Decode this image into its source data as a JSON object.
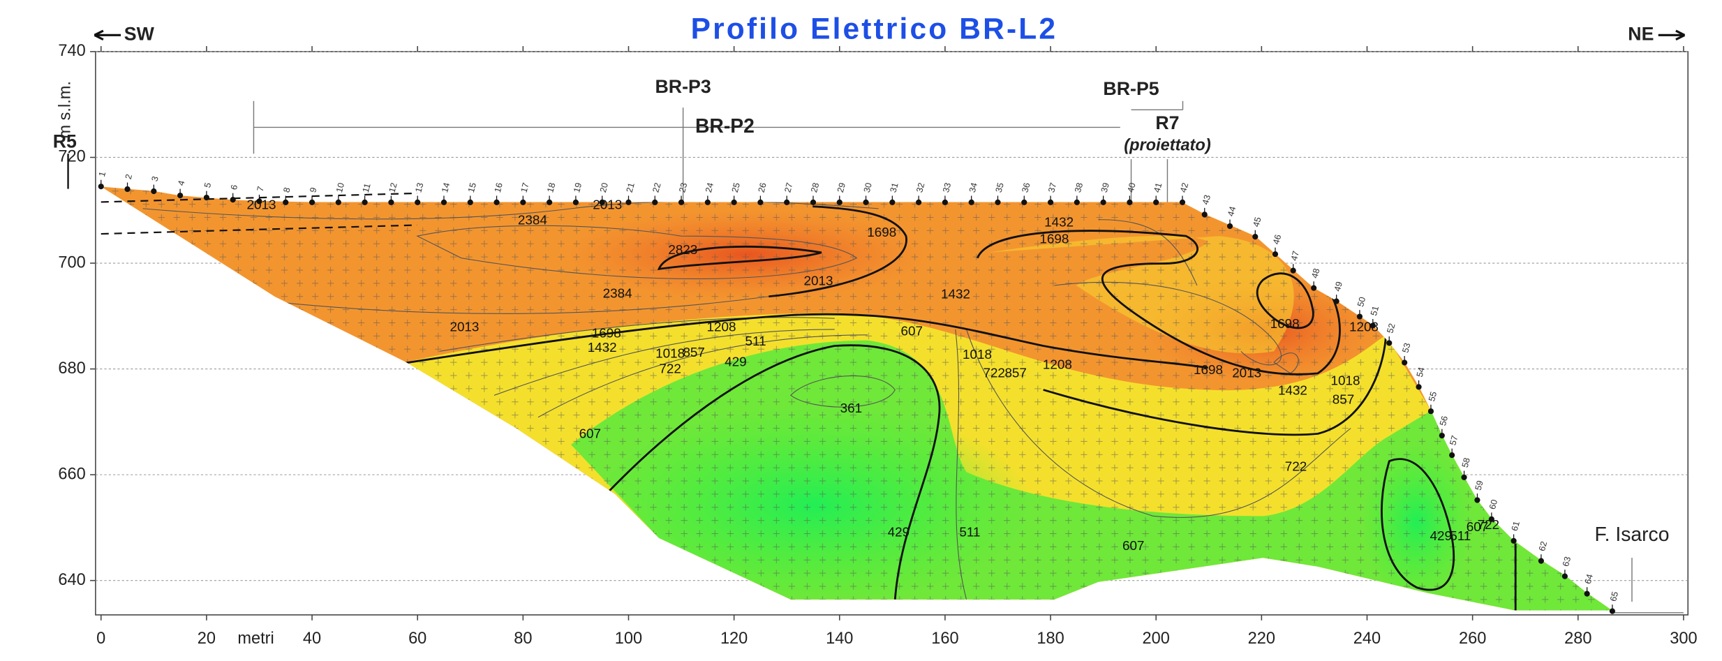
{
  "chart_data": {
    "type": "contour",
    "title": "Profilo Elettrico BR-L2",
    "left_label": "SW",
    "right_label": "NE",
    "y_label": "m s.l.m.",
    "x_label": "metri",
    "xlim": [
      0,
      300
    ],
    "ylim": [
      633.5,
      740
    ],
    "xticks": [
      0,
      20,
      40,
      60,
      80,
      100,
      120,
      140,
      160,
      180,
      200,
      220,
      240,
      260,
      280,
      300
    ],
    "yticks": [
      640,
      660,
      680,
      700,
      720,
      740
    ],
    "grid": true,
    "annotations": {
      "br_p3": "BR-P3",
      "br_p2": "BR-P2",
      "br_p5": "BR-P5",
      "r7": "R7",
      "r7_note": "(proiettato)",
      "r5": "R5",
      "river": "F. Isarco"
    },
    "electrodes": {
      "labels": [
        1,
        2,
        3,
        4,
        5,
        6,
        7,
        8,
        9,
        10,
        11,
        12,
        13,
        14,
        15,
        16,
        17,
        18,
        19,
        20,
        21,
        22,
        23,
        24,
        25,
        26,
        27,
        28,
        29,
        30,
        31,
        32,
        33,
        34,
        35,
        36,
        37,
        38,
        39,
        40,
        41,
        42,
        43,
        44,
        45,
        46,
        47,
        48,
        49,
        50,
        51,
        52,
        53,
        54,
        55,
        56,
        57,
        58,
        59,
        60,
        61,
        62,
        63,
        64,
        65
      ],
      "x": [
        0,
        5,
        10,
        15,
        20,
        25,
        30,
        35,
        40,
        45,
        50,
        55,
        60,
        65,
        70,
        75,
        80,
        85,
        90,
        95,
        100,
        105,
        110,
        115,
        120,
        125,
        130,
        135,
        140,
        145,
        150,
        155,
        160,
        165,
        170,
        175,
        180,
        185,
        190,
        195,
        200,
        205,
        209.2,
        214,
        218.8,
        222.6,
        226,
        229.9,
        234.2,
        238.6,
        241.1,
        244.2,
        247.1,
        249.8,
        252.1,
        254.2,
        256.1,
        258.4,
        260.9,
        263.6,
        267.8,
        273,
        277.5,
        281.7,
        286.5
      ],
      "z": [
        714.5,
        714,
        713.6,
        712.8,
        712.4,
        712,
        711.7,
        711.5,
        711.5,
        711.5,
        711.5,
        711.5,
        711.5,
        711.5,
        711.5,
        711.5,
        711.5,
        711.5,
        711.5,
        711.5,
        711.5,
        711.5,
        711.5,
        711.5,
        711.5,
        711.5,
        711.5,
        711.5,
        711.5,
        711.5,
        711.5,
        711.5,
        711.5,
        711.5,
        711.5,
        711.5,
        711.5,
        711.5,
        711.5,
        711.5,
        711.5,
        711.5,
        709.2,
        707,
        705,
        701.7,
        698.6,
        695.3,
        692.8,
        689.9,
        688.2,
        684.9,
        681.2,
        676.6,
        672,
        667.4,
        663.7,
        659.5,
        655.2,
        651.6,
        647.5,
        643.7,
        640.8,
        637.5,
        634.2
      ]
    },
    "contour_labels": [
      {
        "value": 2013,
        "x": 30.4,
        "z": 710.9
      },
      {
        "value": 2384,
        "x": 81.8,
        "z": 708
      },
      {
        "value": 2013,
        "x": 96,
        "z": 710.9
      },
      {
        "value": 2823,
        "x": 110.3,
        "z": 702.4
      },
      {
        "value": 2384,
        "x": 97.9,
        "z": 694.1
      },
      {
        "value": 2013,
        "x": 68.9,
        "z": 687.8
      },
      {
        "value": 2013,
        "x": 136,
        "z": 696.5
      },
      {
        "value": 1698,
        "x": 148,
        "z": 705.7
      },
      {
        "value": 1698,
        "x": 180.7,
        "z": 704.4
      },
      {
        "value": 1432,
        "x": 181.6,
        "z": 707.6
      },
      {
        "value": 1432,
        "x": 162,
        "z": 694
      },
      {
        "value": 1698,
        "x": 95.8,
        "z": 686.6
      },
      {
        "value": 1432,
        "x": 95,
        "z": 683.9
      },
      {
        "value": 1208,
        "x": 117.6,
        "z": 687.8
      },
      {
        "value": 1018,
        "x": 107.9,
        "z": 682.8
      },
      {
        "value": 857,
        "x": 112.4,
        "z": 683
      },
      {
        "value": 722,
        "x": 107.9,
        "z": 679.9
      },
      {
        "value": 511,
        "x": 124.1,
        "z": 685.1
      },
      {
        "value": 429,
        "x": 120.3,
        "z": 681.2
      },
      {
        "value": 607,
        "x": 153.7,
        "z": 687
      },
      {
        "value": 1018,
        "x": 166.1,
        "z": 682.6
      },
      {
        "value": 857,
        "x": 173.4,
        "z": 679.1
      },
      {
        "value": 722,
        "x": 169.3,
        "z": 679.1
      },
      {
        "value": 1208,
        "x": 181.3,
        "z": 680.7
      },
      {
        "value": 1698,
        "x": 209.9,
        "z": 679.7
      },
      {
        "value": 2013,
        "x": 217.2,
        "z": 679.1
      },
      {
        "value": 1432,
        "x": 225.9,
        "z": 675.8
      },
      {
        "value": 1698,
        "x": 224.4,
        "z": 688.4
      },
      {
        "value": 1018,
        "x": 235.9,
        "z": 677.6
      },
      {
        "value": 857,
        "x": 235.5,
        "z": 674.1
      },
      {
        "value": 1208,
        "x": 239.4,
        "z": 687.8
      },
      {
        "value": 361,
        "x": 142.2,
        "z": 672.4
      },
      {
        "value": 607,
        "x": 92.7,
        "z": 667.6
      },
      {
        "value": 722,
        "x": 226.5,
        "z": 661.4
      },
      {
        "value": 429,
        "x": 151.2,
        "z": 649
      },
      {
        "value": 511,
        "x": 164.7,
        "z": 649
      },
      {
        "value": 607,
        "x": 195.7,
        "z": 646.4
      },
      {
        "value": 429,
        "x": 254,
        "z": 648.3
      },
      {
        "value": 511,
        "x": 257.7,
        "z": 648.3
      },
      {
        "value": 607,
        "x": 260.9,
        "z": 650
      },
      {
        "value": 722,
        "x": 263,
        "z": 650.4
      }
    ]
  }
}
